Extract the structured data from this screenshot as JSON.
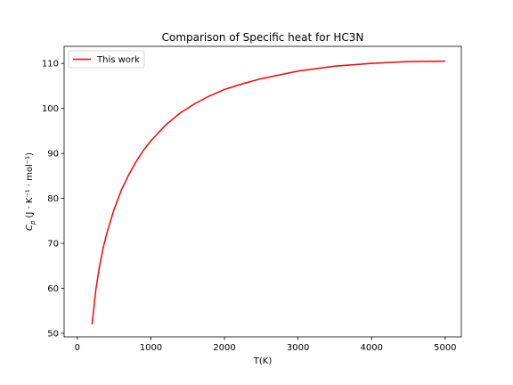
{
  "chart_data": {
    "type": "line",
    "title": "Comparison of Specific heat for HC3N",
    "xlabel": "T(K)",
    "ylabel_parts": {
      "symbol": "C",
      "subscript": "p",
      "unit": "(J · K⁻¹ · mol⁻¹)"
    },
    "xlim": [
      -180,
      5220
    ],
    "ylim": [
      49.2,
      113.8
    ],
    "xticks": [
      0,
      1000,
      2000,
      3000,
      4000,
      5000
    ],
    "xtick_labels": [
      "0",
      "1000",
      "2000",
      "3000",
      "4000",
      "5000"
    ],
    "yticks": [
      50,
      60,
      70,
      80,
      90,
      100,
      110
    ],
    "ytick_labels": [
      "50",
      "60",
      "70",
      "80",
      "90",
      "100",
      "110"
    ],
    "grid": false,
    "legend": "top-left",
    "series": [
      {
        "name": "This work",
        "color": "#ff0000",
        "x": [
          200,
          250,
          300,
          350,
          400,
          500,
          600,
          700,
          800,
          900,
          1000,
          1200,
          1400,
          1600,
          1800,
          2000,
          2250,
          2500,
          3000,
          3500,
          4000,
          4500,
          5000
        ],
        "y": [
          52.0,
          59.5,
          64.8,
          68.9,
          72.2,
          77.6,
          81.9,
          85.3,
          88.2,
          90.7,
          92.8,
          96.3,
          99.0,
          101.1,
          102.8,
          104.2,
          105.5,
          106.6,
          108.3,
          109.4,
          110.0,
          110.4,
          110.5
        ]
      }
    ]
  }
}
